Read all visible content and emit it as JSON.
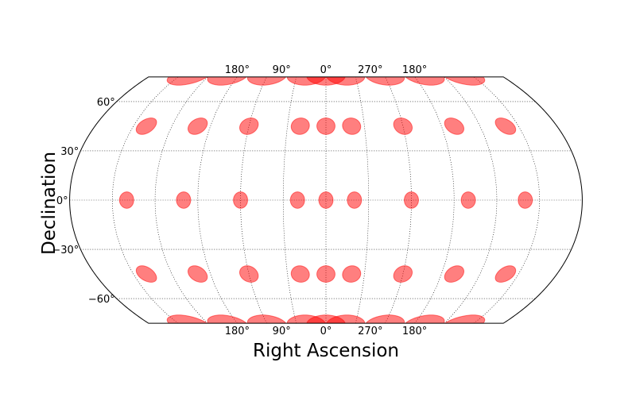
{
  "chart_data": {
    "type": "scatter",
    "projection": "kavrayskiy-vii",
    "xlabel": "Right Ascension",
    "ylabel": "Declination",
    "ra_range_deg": [
      0,
      360
    ],
    "dec_range_deg": [
      -75,
      75
    ],
    "grid": true,
    "ra_tick_labels": [
      "180°",
      "90°",
      "0°",
      "270°",
      "180°"
    ],
    "dec_ticks": [
      {
        "value": 60,
        "label": "60°"
      },
      {
        "value": 30,
        "label": "30°"
      },
      {
        "value": 0,
        "label": "0°"
      },
      {
        "value": -30,
        "label": "−30°"
      },
      {
        "value": -60,
        "label": "−60°"
      }
    ],
    "marker_color": "#ff0000",
    "marker_alpha": 0.5,
    "marker_radius_deg": 5,
    "marker_ra_deg": [
      180,
      140,
      100,
      60,
      20,
      340,
      300,
      260,
      220,
      180
    ],
    "marker_dec_deg": [
      -75,
      -45,
      0,
      45,
      75
    ],
    "markers": [
      {
        "ra": 180,
        "dec": -75
      },
      {
        "ra": 140,
        "dec": -75
      },
      {
        "ra": 100,
        "dec": -75
      },
      {
        "ra": 60,
        "dec": -75
      },
      {
        "ra": 20,
        "dec": -75
      },
      {
        "ra": 340,
        "dec": -75
      },
      {
        "ra": 300,
        "dec": -75
      },
      {
        "ra": 260,
        "dec": -75
      },
      {
        "ra": 220,
        "dec": -75
      },
      {
        "ra": 180,
        "dec": -75
      },
      {
        "ra": 180,
        "dec": -45
      },
      {
        "ra": 140,
        "dec": -45
      },
      {
        "ra": 100,
        "dec": -45
      },
      {
        "ra": 60,
        "dec": -45
      },
      {
        "ra": 20,
        "dec": -45
      },
      {
        "ra": 340,
        "dec": -45
      },
      {
        "ra": 300,
        "dec": -45
      },
      {
        "ra": 260,
        "dec": -45
      },
      {
        "ra": 220,
        "dec": -45
      },
      {
        "ra": 180,
        "dec": -45
      },
      {
        "ra": 180,
        "dec": 0
      },
      {
        "ra": 140,
        "dec": 0
      },
      {
        "ra": 100,
        "dec": 0
      },
      {
        "ra": 60,
        "dec": 0
      },
      {
        "ra": 20,
        "dec": 0
      },
      {
        "ra": 340,
        "dec": 0
      },
      {
        "ra": 300,
        "dec": 0
      },
      {
        "ra": 260,
        "dec": 0
      },
      {
        "ra": 220,
        "dec": 0
      },
      {
        "ra": 180,
        "dec": 0
      },
      {
        "ra": 180,
        "dec": 45
      },
      {
        "ra": 140,
        "dec": 45
      },
      {
        "ra": 100,
        "dec": 45
      },
      {
        "ra": 60,
        "dec": 45
      },
      {
        "ra": 20,
        "dec": 45
      },
      {
        "ra": 340,
        "dec": 45
      },
      {
        "ra": 300,
        "dec": 45
      },
      {
        "ra": 260,
        "dec": 45
      },
      {
        "ra": 220,
        "dec": 45
      },
      {
        "ra": 180,
        "dec": 45
      },
      {
        "ra": 180,
        "dec": 75
      },
      {
        "ra": 140,
        "dec": 75
      },
      {
        "ra": 100,
        "dec": 75
      },
      {
        "ra": 60,
        "dec": 75
      },
      {
        "ra": 20,
        "dec": 75
      },
      {
        "ra": 340,
        "dec": 75
      },
      {
        "ra": 300,
        "dec": 75
      },
      {
        "ra": 260,
        "dec": 75
      },
      {
        "ra": 220,
        "dec": 75
      },
      {
        "ra": 180,
        "dec": 75
      }
    ]
  }
}
